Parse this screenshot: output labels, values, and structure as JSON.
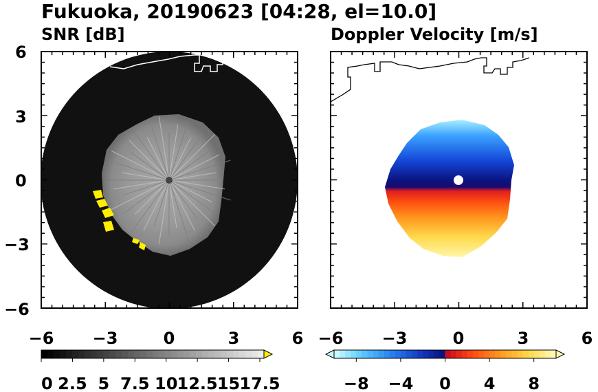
{
  "figure": {
    "title": "Fukuoka, 20190623 [04:28, el=10.0]"
  },
  "chart_data": [
    {
      "type": "heatmap",
      "title": "SNR [dB]",
      "xlim": [
        -6,
        6
      ],
      "ylim": [
        -6,
        6
      ],
      "xticks": [
        "−6",
        "−3",
        "0",
        "3",
        "6"
      ],
      "yticks": [
        "6",
        "3",
        "0",
        "−3",
        "−6"
      ],
      "grid": false,
      "colorbar": {
        "range": [
          0,
          17.5
        ],
        "extend": "max",
        "tick_labels": [
          "0",
          "2.5",
          "5",
          "7.5",
          "10",
          "12.5",
          "15",
          "17.5"
        ],
        "colormap": "black-to-white",
        "overflow_color": "#ffee00"
      },
      "coastline_color": "#ffffff",
      "background_disc_color": "#111111"
    },
    {
      "type": "heatmap",
      "title": "Doppler Velocity [m/s]",
      "xlim": [
        -6,
        6
      ],
      "ylim": [
        -6,
        6
      ],
      "xticks": [
        "−6",
        "−3",
        "0",
        "3",
        "6"
      ],
      "yticks": [],
      "grid": false,
      "colorbar": {
        "range": [
          -10,
          10
        ],
        "extend": "both",
        "tick_labels": [
          "−8",
          "−4",
          "0",
          "4",
          "8"
        ],
        "colormap": "light-cyan-blue-navy-red-orange-yellow"
      },
      "coastline_color": "#000000"
    }
  ]
}
